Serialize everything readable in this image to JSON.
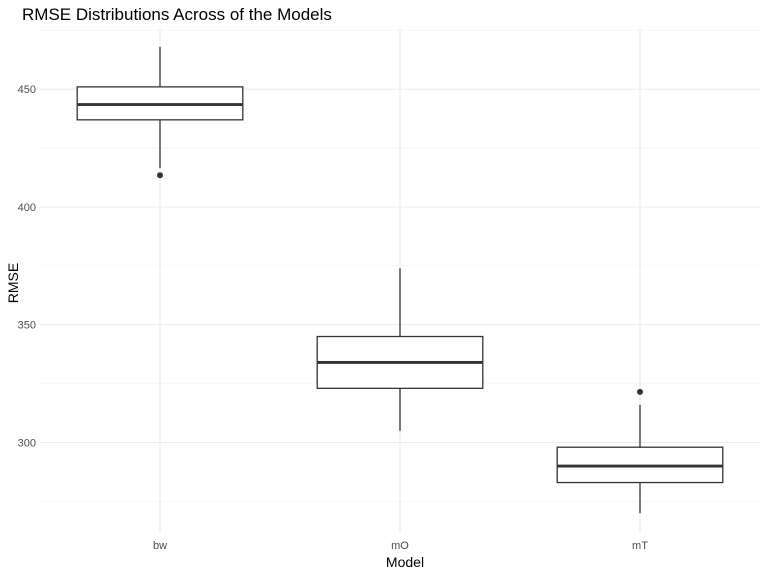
{
  "chart_data": {
    "type": "boxplot",
    "title": "RMSE Distributions Across of the Models",
    "xlabel": "Model",
    "ylabel": "RMSE",
    "categories": [
      "bw",
      "mO",
      "mT"
    ],
    "ylim": [
      262,
      476
    ],
    "y_ticks": [
      300,
      350,
      400,
      450
    ],
    "y_minor_ticks": [
      275,
      325,
      375,
      425,
      475
    ],
    "grid": true,
    "legend": "none",
    "boxes": [
      {
        "category": "bw",
        "whisker_low": 416.5,
        "q1": 437,
        "median": 443.5,
        "q3": 451,
        "whisker_high": 468,
        "outliers": [
          413.5
        ]
      },
      {
        "category": "mO",
        "whisker_low": 305,
        "q1": 323,
        "median": 334,
        "q3": 345,
        "whisker_high": 374,
        "outliers": []
      },
      {
        "category": "mT",
        "whisker_low": 270,
        "q1": 283,
        "median": 290,
        "q3": 298,
        "whisker_high": 316,
        "outliers": [
          321.5
        ]
      }
    ],
    "colors": {
      "box_fill": "#ffffff",
      "box_stroke": "#333333",
      "median": "#333333",
      "outlier": "#333333"
    }
  }
}
